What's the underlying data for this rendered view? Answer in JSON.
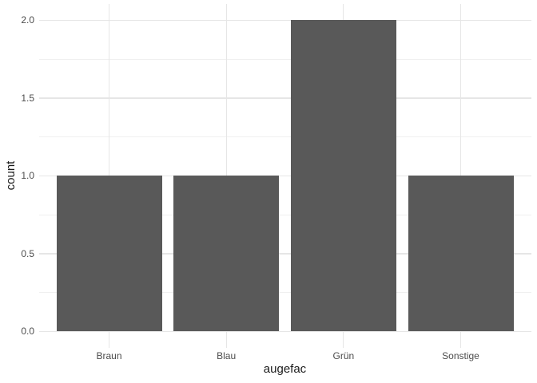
{
  "figure": {
    "background": "#FFFFFF"
  },
  "chart_data": {
    "type": "bar",
    "title": "",
    "categories": [
      "Braun",
      "Blau",
      "Grün",
      "Sonstige"
    ],
    "values": [
      1,
      1,
      2,
      1
    ],
    "xlabel": "augefac",
    "ylabel": "count",
    "ylim": [
      -0.105,
      2.105
    ],
    "y_major_ticks": [
      0.0,
      0.5,
      1.0,
      1.5,
      2.0
    ],
    "y_tick_labels": [
      "0.0",
      "0.5",
      "1.0",
      "1.5",
      "2.0"
    ],
    "y_minor_ticks": [
      0.25,
      0.75,
      1.25,
      1.75
    ],
    "bar_width_fraction": 0.9,
    "grid": true,
    "legend": "none",
    "colors": {
      "bar_fill": "#595959",
      "grid_major": "#E6E6E6",
      "grid_minor": "#F0F0F0",
      "axis_text": "#4D4D4D",
      "axis_title": "#1A1A1A",
      "background": "#FFFFFF"
    }
  }
}
